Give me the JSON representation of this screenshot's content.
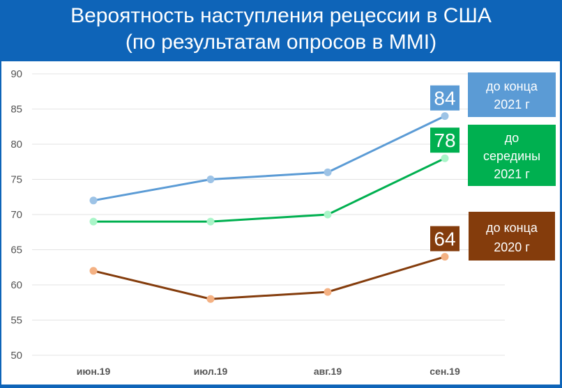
{
  "title": {
    "line1": "Вероятность наступления рецессии в США",
    "line2": "(по результатам опросов в MMI)"
  },
  "colors": {
    "frame": "#0e64b8",
    "series_2021_end": "#5b9bd5",
    "series_2021_mid": "#00b050",
    "series_2020_end": "#843c0c",
    "marker_2021_end": "#9dc3e6",
    "marker_2021_mid": "#a9f5c8",
    "marker_2020_end": "#f4b183"
  },
  "chart_data": {
    "type": "line",
    "title": "Вероятность наступления рецессии в США (по результатам опросов в MMI)",
    "categories": [
      "июн.19",
      "июл.19",
      "авг.19",
      "сен.19"
    ],
    "ylim": [
      50,
      90
    ],
    "yticks": [
      50,
      55,
      60,
      65,
      70,
      75,
      80,
      85,
      90
    ],
    "grid": true,
    "series": [
      {
        "key": "s2021end",
        "name": "до конца 2021 г",
        "legend_lines": [
          "до конца",
          "2021 г"
        ],
        "values": [
          72,
          75,
          76,
          84
        ],
        "last_label": "84"
      },
      {
        "key": "s2021mid",
        "name": "до середины 2021 г",
        "legend_lines": [
          "до",
          "середины",
          "2021 г"
        ],
        "values": [
          69,
          69,
          70,
          78
        ],
        "last_label": "78"
      },
      {
        "key": "s2020end",
        "name": "до конца 2020 г",
        "legend_lines": [
          "до конца",
          "2020 г"
        ],
        "values": [
          62,
          58,
          59,
          64
        ],
        "last_label": "64"
      }
    ]
  }
}
